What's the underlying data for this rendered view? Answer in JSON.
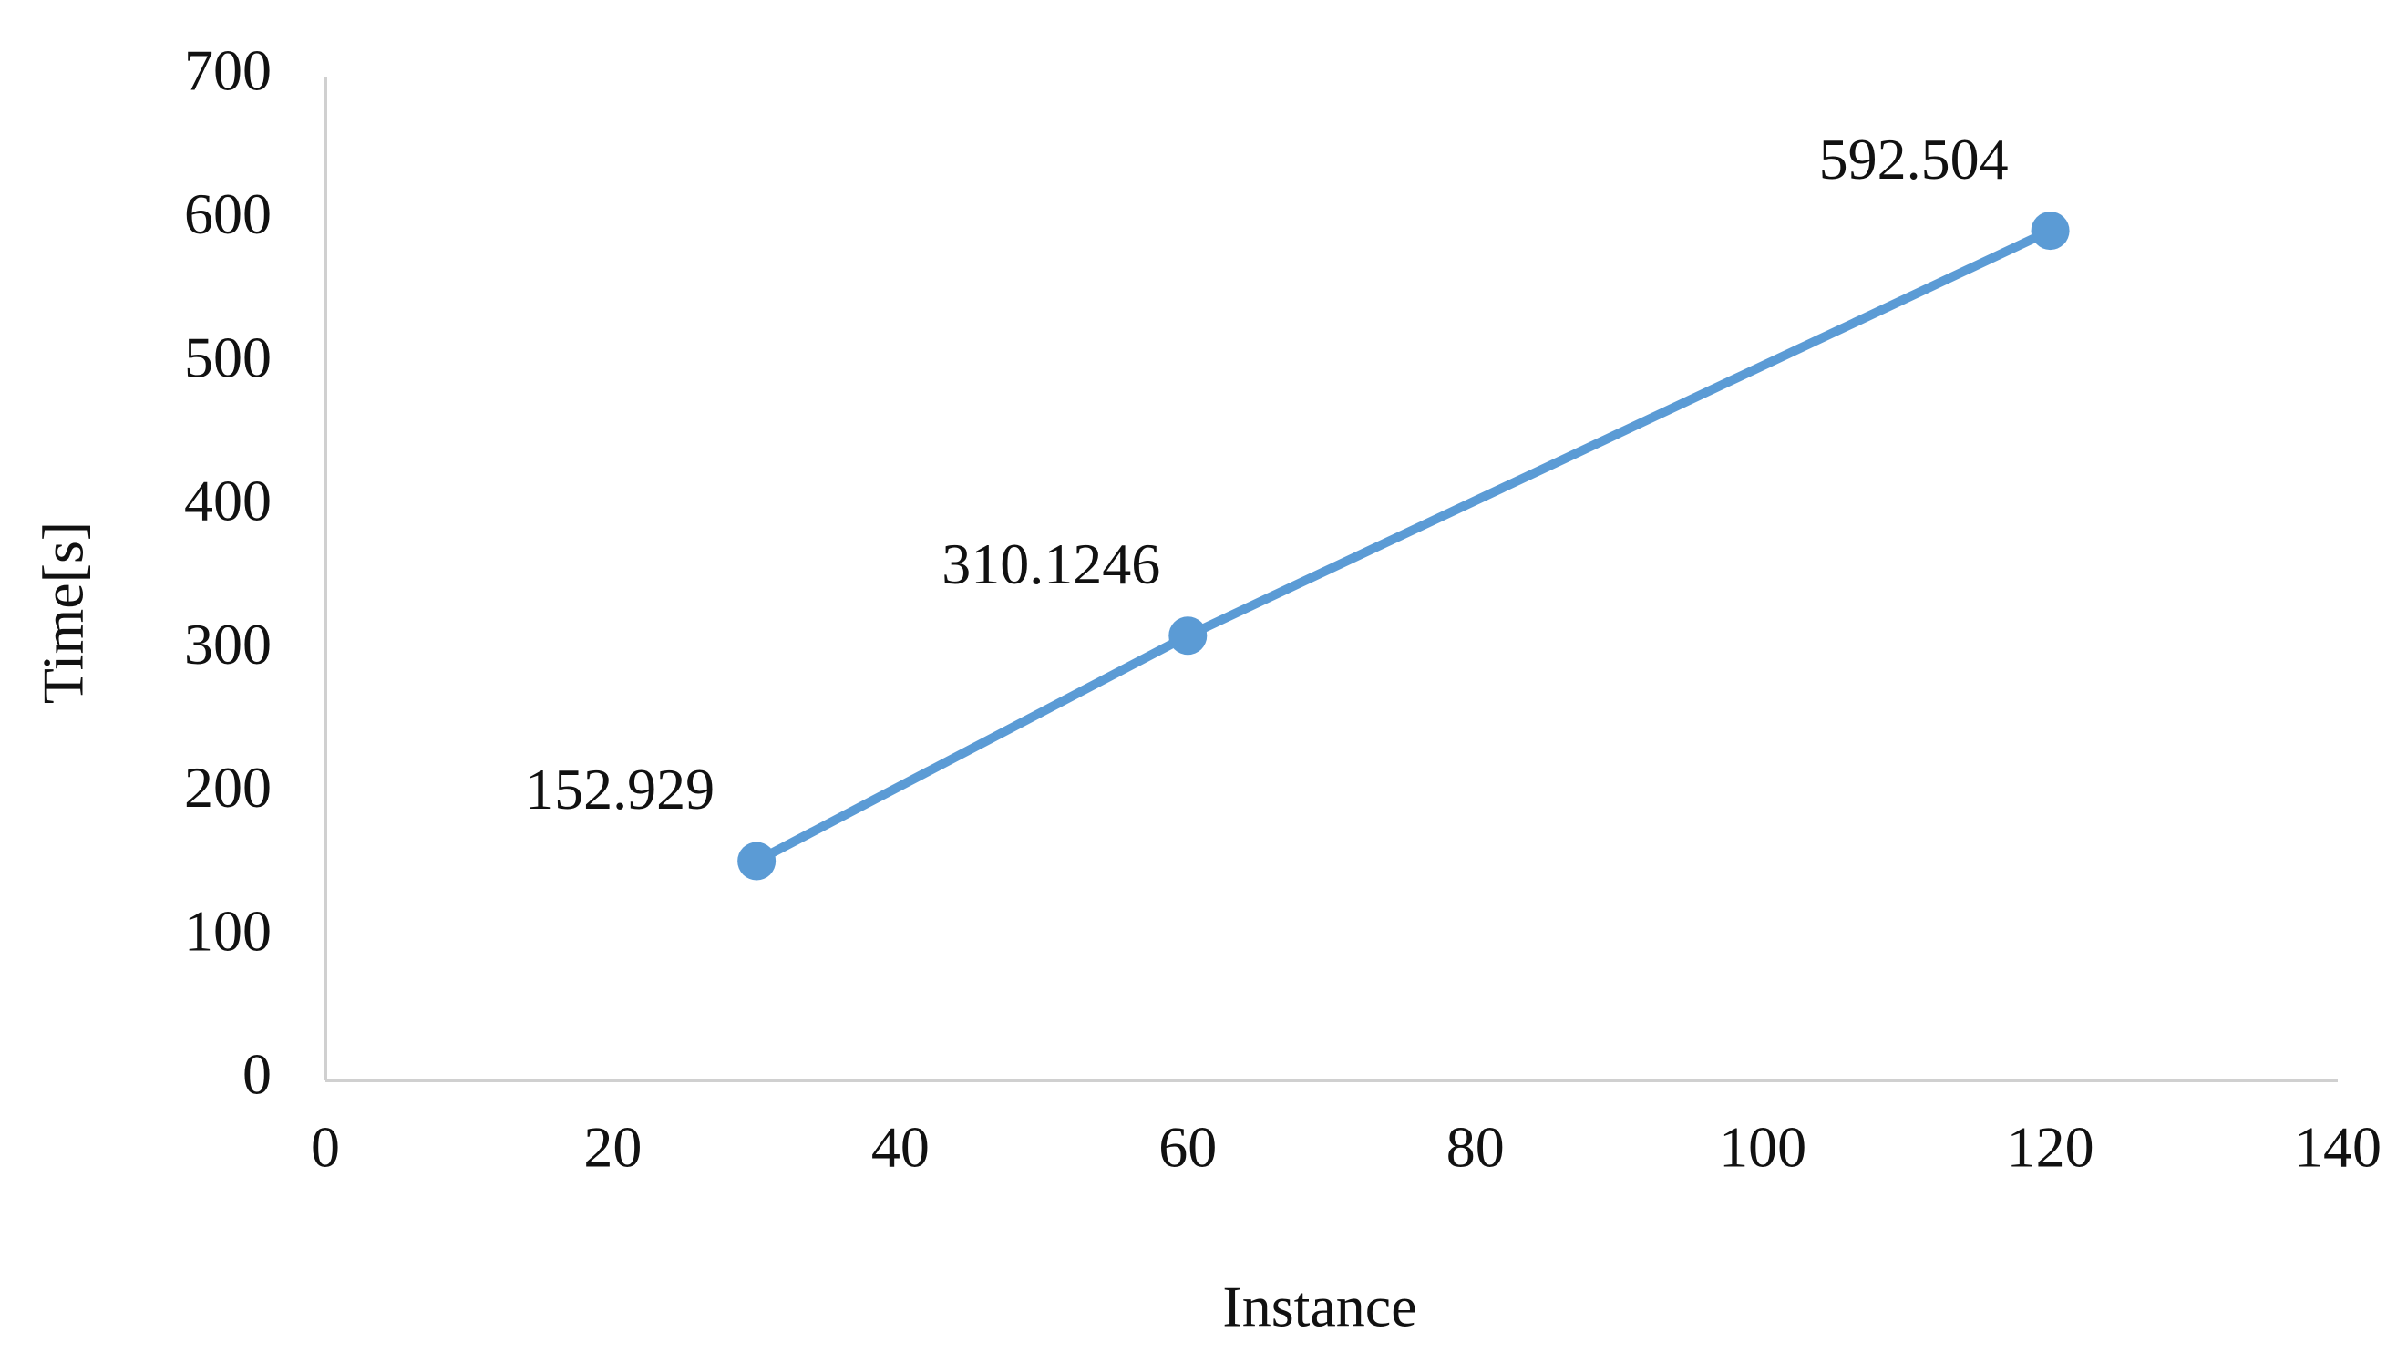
{
  "chart_data": {
    "type": "line",
    "x_label": "Instance",
    "y_label": "Time[s]",
    "x": [
      30,
      60,
      120
    ],
    "series": [
      {
        "color": "#5b9bd5",
        "values": [
          152.929,
          310.1246,
          592.504
        ]
      }
    ],
    "xlim": [
      0,
      140
    ],
    "xticks": [
      0,
      20,
      40,
      60,
      80,
      100,
      120,
      140
    ],
    "ylim": [
      0,
      700
    ],
    "yticks": [
      0,
      100,
      200,
      300,
      400,
      500,
      600,
      700
    ],
    "grid": false
  }
}
